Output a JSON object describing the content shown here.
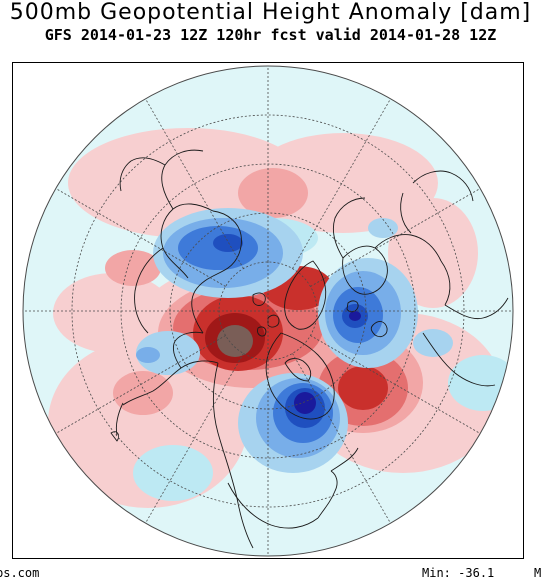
{
  "header": {
    "title": "500mb Geopotential Height Anomaly [dam]",
    "subtitle": "GFS 2014-01-23 12Z 120hr fcst valid 2014-01-28 12Z"
  },
  "footer": {
    "source_fragment": "bs.com",
    "min_label": "Min:",
    "min_value": "-36.1",
    "max_fragment": "M"
  },
  "colors": {
    "ocean": "#dff6f8",
    "grid": "#4a4a4a",
    "coast": "#1a1a1a",
    "pos_weak": "#f7cfd0",
    "pos_light": "#f2a6a6",
    "pos_mid": "#e46f6f",
    "pos_strong": "#c9302c",
    "pos_extreme": "#a01818",
    "pos_max": "#7a5e57",
    "neg_faint": "#bde9f3",
    "neg_weak": "#a7d3ef",
    "neg_light": "#78aee9",
    "neg_mid": "#3e7ad9",
    "neg_strong": "#1f4fbf",
    "neg_extreme": "#1a1a9c"
  },
  "map": {
    "projection": "polar-stereographic",
    "region": "Northern Hemisphere",
    "variable": "500mb geopotential height anomaly",
    "units": "dam"
  }
}
